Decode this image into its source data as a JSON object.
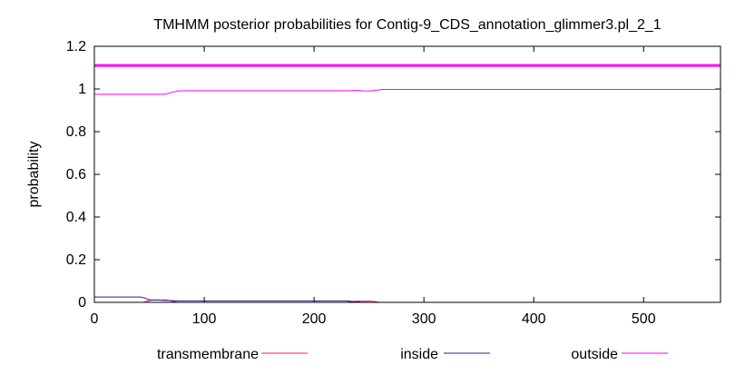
{
  "chart_data": {
    "type": "line",
    "title": "TMHMM posterior probabilities for Contig-9_CDS_annotation_glimmer3.pl_2_1",
    "xlabel": "",
    "ylabel": "probability",
    "xlim": [
      0,
      570
    ],
    "ylim": [
      0,
      1.2
    ],
    "xticks": [
      0,
      100,
      200,
      300,
      400,
      500
    ],
    "yticks": [
      0,
      0.2,
      0.4,
      0.6,
      0.8,
      1,
      1.2
    ],
    "ytick_labels": [
      "0",
      "0.2",
      "0.4",
      "0.6",
      "0.8",
      "1",
      "1.2"
    ],
    "grid": false,
    "legend_position": "bottom",
    "reference_line": {
      "y": 1.11,
      "color": "#ff00ff"
    },
    "series": [
      {
        "name": "transmembrane",
        "color": "#ff1b6b",
        "x": [
          0,
          45,
          48,
          52,
          56,
          60,
          64,
          68,
          72,
          76,
          230,
          235,
          240,
          245,
          250,
          255,
          260,
          570
        ],
        "y": [
          0,
          0,
          0.006,
          0.01,
          0.012,
          0.01,
          0.012,
          0.009,
          0.004,
          0,
          0,
          0.004,
          0.006,
          0.005,
          0.006,
          0.004,
          0,
          0
        ]
      },
      {
        "name": "inside",
        "color": "#1f1f8f",
        "x": [
          0,
          42,
          46,
          50,
          60,
          70,
          80,
          230,
          236,
          242,
          250,
          260,
          570
        ],
        "y": [
          0.025,
          0.025,
          0.02,
          0.012,
          0.01,
          0.008,
          0.007,
          0.007,
          0.003,
          0.001,
          0,
          0,
          0
        ]
      },
      {
        "name": "outside",
        "color": "#ff00ff",
        "x": [
          0,
          62,
          66,
          70,
          76,
          82,
          90,
          230,
          240,
          245,
          250,
          255,
          262,
          570
        ],
        "y": [
          0.975,
          0.975,
          0.978,
          0.984,
          0.99,
          0.992,
          0.992,
          0.992,
          0.993,
          0.991,
          0.99,
          0.993,
          0.998,
          0.998
        ]
      }
    ]
  }
}
